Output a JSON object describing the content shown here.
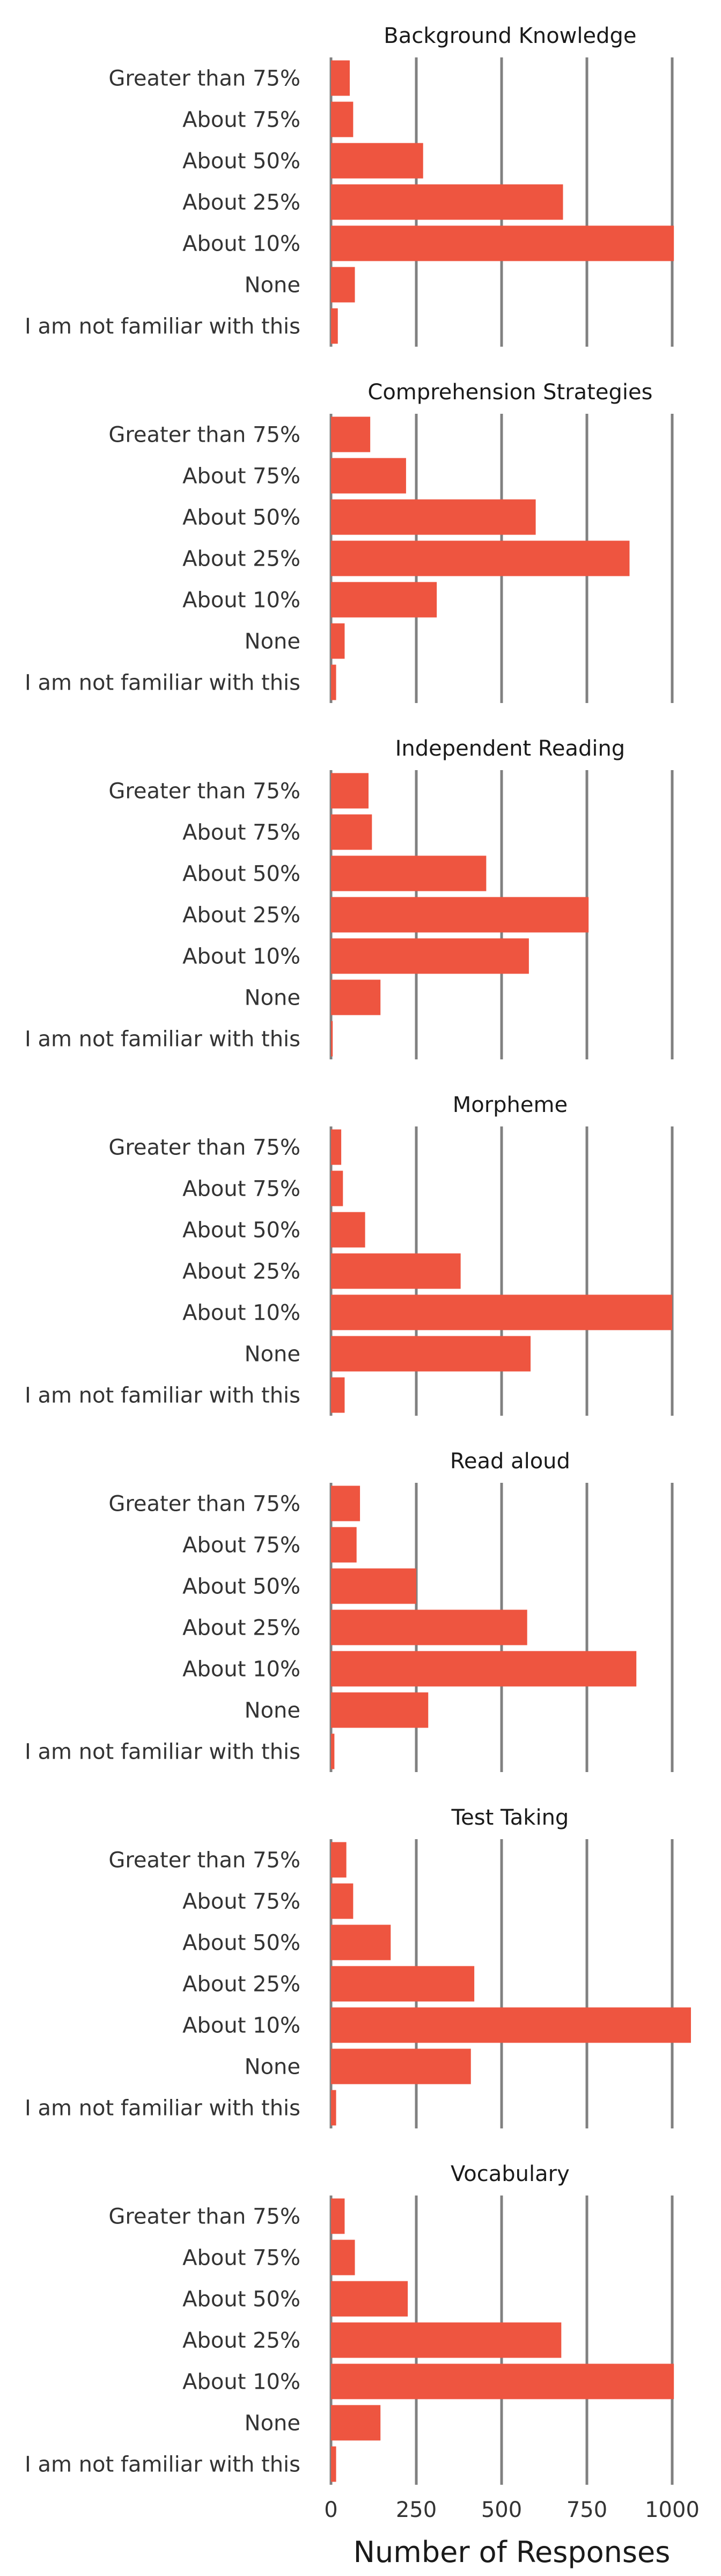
{
  "chart_data": {
    "type": "bar",
    "orientation": "horizontal",
    "xlabel": "Number of Responses",
    "xlim": [
      0,
      1050
    ],
    "xticks": [
      0,
      250,
      500,
      750,
      1000
    ],
    "grid": true,
    "bar_color": "#ee5540",
    "categories": [
      "Greater than 75%",
      "About 75%",
      "About 50%",
      "About 25%",
      "About 10%",
      "None",
      "I am not familiar with this"
    ],
    "panels": [
      {
        "title": "Background Knowledge",
        "values": [
          55,
          65,
          270,
          680,
          1005,
          70,
          20
        ]
      },
      {
        "title": "Comprehension Strategies",
        "values": [
          115,
          220,
          600,
          875,
          310,
          40,
          15
        ]
      },
      {
        "title": "Independent Reading",
        "values": [
          110,
          120,
          455,
          755,
          580,
          145,
          5
        ]
      },
      {
        "title": "Morpheme",
        "values": [
          30,
          35,
          100,
          380,
          1000,
          585,
          40
        ]
      },
      {
        "title": "Read aloud",
        "values": [
          85,
          75,
          250,
          575,
          895,
          285,
          10
        ]
      },
      {
        "title": "Test Taking",
        "values": [
          45,
          65,
          175,
          420,
          1055,
          410,
          15
        ]
      },
      {
        "title": "Vocabulary",
        "values": [
          40,
          70,
          225,
          675,
          1005,
          145,
          15
        ]
      }
    ]
  }
}
